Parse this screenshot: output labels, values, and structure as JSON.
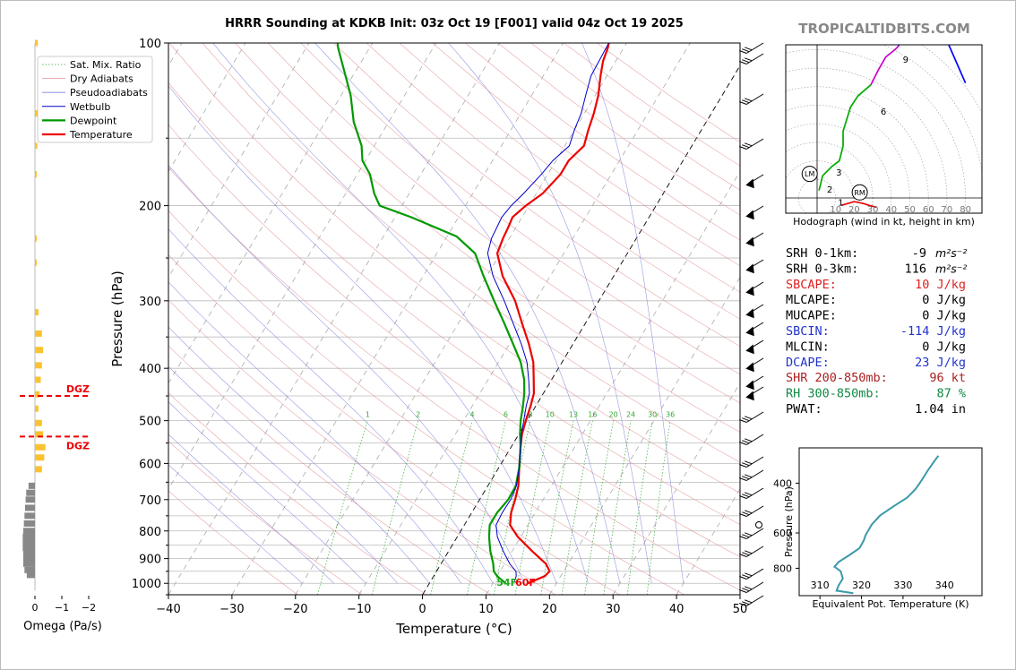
{
  "chart_data": [
    {
      "type": "line",
      "subtype": "skew-t",
      "title": "HRRR Sounding at KDKB Init: 03z Oct 19 [F001] valid 04z Oct 19 2025",
      "xlabel": "Temperature (°C)",
      "ylabel": "Pressure (hPa)",
      "xlim": [
        -40,
        50
      ],
      "ylim": [
        1050,
        100
      ],
      "y_scale": "log",
      "x_ticks": [
        -40,
        -30,
        -20,
        -10,
        0,
        10,
        20,
        30,
        40,
        50
      ],
      "y_ticks": [
        100,
        200,
        300,
        400,
        500,
        600,
        700,
        800,
        900,
        1000
      ],
      "legend": [
        "Sat. Mix. Ratio",
        "Dry Adiabats",
        "Pseudoadiabats",
        "Wetbulb",
        "Dewpoint",
        "Temperature"
      ],
      "legend_position": "top-left",
      "mixing_ratio_labels": [
        "1",
        "2",
        "4",
        "6",
        "8",
        "10",
        "13",
        "16",
        "20",
        "24",
        "30",
        "36"
      ],
      "surface_labels": {
        "dewpoint": "54F",
        "temperature": "60F"
      },
      "series": [
        {
          "name": "Temperature",
          "color": "#ee0000",
          "points": [
            [
              15.5,
              1000
            ],
            [
              17.5,
              970
            ],
            [
              17.8,
              950
            ],
            [
              16.5,
              920
            ],
            [
              13,
              870
            ],
            [
              9.5,
              820
            ],
            [
              7.2,
              780
            ],
            [
              6.2,
              740
            ],
            [
              5.6,
              700
            ],
            [
              4.8,
              660
            ],
            [
              3.2,
              610
            ],
            [
              1.5,
              560
            ],
            [
              0.5,
              530
            ],
            [
              -0.2,
              500
            ],
            [
              -0.8,
              470
            ],
            [
              -1.5,
              445
            ],
            [
              -2.8,
              420
            ],
            [
              -4.5,
              390
            ],
            [
              -7,
              360
            ],
            [
              -10,
              330
            ],
            [
              -13.2,
              300
            ],
            [
              -17.5,
              270
            ],
            [
              -20.5,
              245
            ],
            [
              -21,
              230
            ],
            [
              -21.2,
              220
            ],
            [
              -21.5,
              210
            ],
            [
              -20.5,
              200
            ],
            [
              -19,
              190
            ],
            [
              -18,
              175
            ],
            [
              -18,
              165
            ],
            [
              -17,
              155
            ],
            [
              -17.8,
              145
            ],
            [
              -18.5,
              135
            ],
            [
              -19.5,
              125
            ],
            [
              -21,
              115
            ],
            [
              -22,
              108
            ],
            [
              -22.5,
              102
            ],
            [
              -22.8,
              100
            ]
          ]
        },
        {
          "name": "Dewpoint",
          "color": "#009900",
          "points": [
            [
              12,
              1000
            ],
            [
              10,
              970
            ],
            [
              9,
              950
            ],
            [
              8.2,
              920
            ],
            [
              6.5,
              870
            ],
            [
              5,
              820
            ],
            [
              4,
              780
            ],
            [
              4,
              740
            ],
            [
              4.5,
              700
            ],
            [
              4.4,
              660
            ],
            [
              3.2,
              610
            ],
            [
              1.5,
              560
            ],
            [
              0.2,
              530
            ],
            [
              -1,
              500
            ],
            [
              -2,
              470
            ],
            [
              -3,
              445
            ],
            [
              -4.3,
              420
            ],
            [
              -6.5,
              390
            ],
            [
              -9.5,
              360
            ],
            [
              -12.8,
              330
            ],
            [
              -16.5,
              300
            ],
            [
              -20.5,
              270
            ],
            [
              -24,
              245
            ],
            [
              -28.5,
              228
            ],
            [
              -37.5,
              210
            ],
            [
              -43.5,
              200
            ],
            [
              -45.5,
              190
            ],
            [
              -48,
              175
            ],
            [
              -50.5,
              165
            ],
            [
              -52,
              155
            ],
            [
              -55.5,
              140
            ],
            [
              -58.5,
              125
            ],
            [
              -62,
              112
            ],
            [
              -65,
              102
            ],
            [
              -65.5,
              100
            ]
          ]
        },
        {
          "name": "Wetbulb",
          "color": "#0000cc",
          "points": [
            [
              13.2,
              990
            ],
            [
              13,
              970
            ],
            [
              12.5,
              950
            ],
            [
              10.8,
              920
            ],
            [
              8.5,
              870
            ],
            [
              6.3,
              820
            ],
            [
              5,
              780
            ],
            [
              4.8,
              740
            ],
            [
              4.9,
              700
            ],
            [
              4.5,
              660
            ],
            [
              3.2,
              610
            ],
            [
              1.5,
              560
            ],
            [
              0.4,
              530
            ],
            [
              -0.5,
              500
            ],
            [
              -1.5,
              470
            ],
            [
              -2.2,
              445
            ],
            [
              -3.6,
              420
            ],
            [
              -5.5,
              390
            ],
            [
              -8.2,
              360
            ],
            [
              -11.4,
              330
            ],
            [
              -14.9,
              300
            ],
            [
              -19,
              270
            ],
            [
              -22,
              245
            ],
            [
              -22.8,
              230
            ],
            [
              -23,
              220
            ],
            [
              -23.2,
              210
            ],
            [
              -22.8,
              200
            ],
            [
              -22,
              190
            ],
            [
              -21,
              175
            ],
            [
              -20.5,
              165
            ],
            [
              -19.3,
              155
            ],
            [
              -20,
              145
            ],
            [
              -20.5,
              135
            ],
            [
              -21.5,
              125
            ],
            [
              -22.5,
              115
            ],
            [
              -22.8,
              100
            ]
          ]
        }
      ]
    },
    {
      "type": "line",
      "subtype": "bar",
      "xlabel": "Omega (Pa/s)",
      "x_ticks": [
        "0",
        "−1",
        "−2"
      ],
      "annotations": [
        "DGZ",
        "DGZ"
      ],
      "dgz_bounds_hPa": [
        450,
        535
      ],
      "bars_positive": [
        [
          100,
          0.25
        ],
        [
          135,
          0.25
        ],
        [
          155,
          0.2
        ],
        [
          175,
          0.06
        ],
        [
          230,
          0.15
        ],
        [
          255,
          0.1
        ],
        [
          315,
          0.3
        ],
        [
          345,
          0.6
        ],
        [
          370,
          0.7
        ],
        [
          395,
          0.6
        ],
        [
          420,
          0.5
        ],
        [
          447,
          0.4
        ],
        [
          475,
          0.3
        ],
        [
          505,
          0.6
        ],
        [
          530,
          0.7
        ],
        [
          560,
          0.9
        ],
        [
          585,
          0.8
        ],
        [
          615,
          0.6
        ]
      ],
      "bars_negative": [
        [
          660,
          0.55
        ],
        [
          680,
          0.75
        ],
        [
          700,
          0.8
        ],
        [
          725,
          0.85
        ],
        [
          750,
          0.9
        ],
        [
          775,
          0.95
        ],
        [
          800,
          1
        ],
        [
          820,
          1.05
        ],
        [
          840,
          1.05
        ],
        [
          860,
          1.05
        ],
        [
          880,
          1
        ],
        [
          900,
          1
        ],
        [
          920,
          1
        ],
        [
          945,
          0.9
        ],
        [
          965,
          0.7
        ]
      ]
    },
    {
      "type": "line",
      "subtype": "hodograph",
      "xlabel": "Hodograph (wind in kt, height in km)",
      "x_ticks": [
        "10",
        "20",
        "30",
        "40",
        "50",
        "60",
        "70",
        "80"
      ],
      "height_labels": [
        "1",
        "2",
        "3",
        "6",
        "9"
      ],
      "markers": [
        "LM",
        "RM"
      ],
      "segments": [
        {
          "color": "#ee0000",
          "points": [
            [
              13,
              -4
            ],
            [
              20,
              -2
            ],
            [
              25,
              -3
            ],
            [
              28,
              -4
            ],
            [
              32,
              -5
            ]
          ]
        },
        {
          "color": "#00aa00",
          "points": [
            [
              1,
              4
            ],
            [
              3,
              12
            ],
            [
              8,
              17
            ],
            [
              12,
              20
            ],
            [
              14,
              28
            ],
            [
              14,
              36
            ],
            [
              18,
              49
            ],
            [
              22,
              55
            ],
            [
              29,
              61
            ]
          ]
        },
        {
          "color": "#cc00cc",
          "points": [
            [
              29,
              61
            ],
            [
              33,
              69
            ],
            [
              37,
              76
            ],
            [
              42,
              80
            ],
            [
              44,
              82
            ]
          ]
        },
        {
          "color": "#0000ff",
          "points": [
            [
              44,
              82
            ],
            [
              43,
              92
            ],
            [
              44,
              97
            ],
            [
              50,
              100
            ],
            [
              66,
              94
            ],
            [
              80,
              62
            ]
          ]
        }
      ]
    },
    {
      "type": "line",
      "xlabel": "Equivalent Pot. Temperature (K)",
      "ylabel": "Pressure (hPa)",
      "x_ticks": [
        "310",
        "320",
        "330",
        "340"
      ],
      "y_ticks": [
        "400",
        "600",
        "800"
      ],
      "xlim": [
        305,
        349
      ],
      "ylim": [
        1000,
        300
      ],
      "color": "#3a9aaa",
      "points": [
        [
          318,
          980
        ],
        [
          314,
          960
        ],
        [
          314.5,
          920
        ],
        [
          315.5,
          870
        ],
        [
          315,
          820
        ],
        [
          313.5,
          790
        ],
        [
          314.5,
          760
        ],
        [
          317,
          720
        ],
        [
          319.5,
          680
        ],
        [
          320.5,
          640
        ],
        [
          321,
          610
        ],
        [
          322.5,
          560
        ],
        [
          324.5,
          520
        ],
        [
          328,
          480
        ],
        [
          331,
          450
        ],
        [
          333,
          420
        ],
        [
          334,
          400
        ],
        [
          335,
          380
        ],
        [
          336,
          360
        ],
        [
          337.5,
          335
        ],
        [
          338.5,
          320
        ]
      ]
    }
  ],
  "brand": "TROPICALTIDBITS.COM",
  "stats": [
    {
      "label": "SRH 0-1km:",
      "value": "-9",
      "unit": "m²s⁻²",
      "color": "#000000"
    },
    {
      "label": "SRH 0-3km:",
      "value": "116",
      "unit": "m²s⁻²",
      "color": "#000000"
    },
    {
      "label": "SBCAPE:",
      "value": "10 J/kg",
      "unit": "",
      "color": "#dd2222"
    },
    {
      "label": "MLCAPE:",
      "value": "0 J/kg",
      "unit": "",
      "color": "#000000"
    },
    {
      "label": "MUCAPE:",
      "value": "0 J/kg",
      "unit": "",
      "color": "#000000"
    },
    {
      "label": "SBCIN:",
      "value": "-114 J/kg",
      "unit": "",
      "color": "#2233cc"
    },
    {
      "label": "MLCIN:",
      "value": "0 J/kg",
      "unit": "",
      "color": "#000000"
    },
    {
      "label": "DCAPE:",
      "value": "23 J/kg",
      "unit": "",
      "color": "#2233cc"
    },
    {
      "label": "SHR 200-850mb:",
      "value": "96 kt",
      "unit": "",
      "color": "#aa2222"
    },
    {
      "label": "RH 300-850mb:",
      "value": "87 %",
      "unit": "",
      "color": "#118844"
    },
    {
      "label": "PWAT:",
      "value": "1.04 in",
      "unit": "",
      "color": "#000000"
    }
  ]
}
